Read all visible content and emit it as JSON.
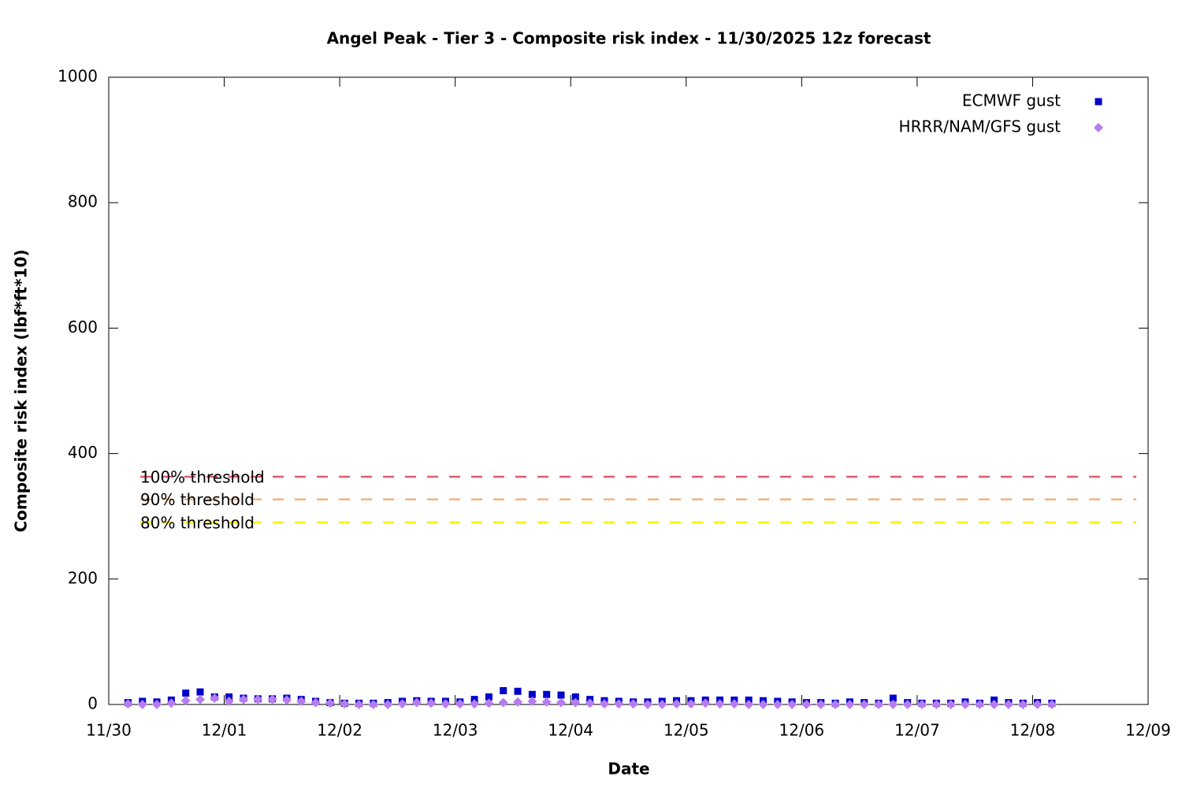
{
  "chart_data": {
    "type": "scatter",
    "title": "Angel Peak - Tier 3 - Composite risk index - 11/30/2025 12z forecast",
    "x_label": "Date",
    "y_label": "Composite risk index (lbf*ft*10)",
    "xlim": [
      0,
      216
    ],
    "xticks": [
      {
        "value": 0,
        "label": "11/30"
      },
      {
        "value": 24,
        "label": "12/01"
      },
      {
        "value": 48,
        "label": "12/02"
      },
      {
        "value": 72,
        "label": "12/03"
      },
      {
        "value": 96,
        "label": "12/04"
      },
      {
        "value": 120,
        "label": "12/05"
      },
      {
        "value": 144,
        "label": "12/06"
      },
      {
        "value": 168,
        "label": "12/07"
      },
      {
        "value": 192,
        "label": "12/08"
      },
      {
        "value": 216,
        "label": "12/09"
      }
    ],
    "ylim": [
      0,
      1000
    ],
    "yticks": [
      0,
      200,
      400,
      600,
      800,
      1000
    ],
    "legend": "top-right",
    "series": [
      {
        "name": "ECMWF gust",
        "color": "#0000cc",
        "marker": "square",
        "x": [
          4,
          7,
          10,
          13,
          16,
          19,
          22,
          25,
          28,
          31,
          34,
          37,
          40,
          43,
          46,
          49,
          52,
          55,
          58,
          61,
          64,
          67,
          70,
          73,
          76,
          79,
          82,
          85,
          88,
          91,
          94,
          97,
          100,
          103,
          106,
          109,
          112,
          115,
          118,
          121,
          124,
          127,
          130,
          133,
          136,
          139,
          142,
          145,
          148,
          151,
          154,
          157,
          160,
          163,
          166,
          169,
          172,
          175,
          178,
          181,
          184,
          187,
          190,
          193,
          196
        ],
        "values": [
          3,
          5,
          4,
          7,
          18,
          20,
          12,
          12,
          10,
          9,
          9,
          10,
          8,
          5,
          3,
          2,
          2,
          2,
          3,
          5,
          6,
          5,
          5,
          4,
          8,
          12,
          22,
          21,
          16,
          16,
          15,
          12,
          8,
          6,
          5,
          4,
          4,
          5,
          6,
          6,
          7,
          7,
          7,
          7,
          6,
          5,
          4,
          3,
          3,
          2,
          4,
          3,
          2,
          10,
          3,
          2,
          2,
          2,
          4,
          2,
          7,
          3,
          2,
          3,
          2
        ]
      },
      {
        "name": "HRRR/NAM/GFS gust",
        "color": "#b77cf0",
        "marker": "diamond",
        "x": [
          4,
          7,
          10,
          13,
          16,
          19,
          22,
          25,
          28,
          31,
          34,
          37,
          40,
          43,
          46,
          49,
          52,
          55,
          58,
          61,
          64,
          67,
          70,
          73,
          76,
          79,
          82,
          85,
          88,
          91,
          94,
          97,
          100,
          103,
          106,
          109,
          112,
          115,
          118,
          121,
          124,
          127,
          130,
          133,
          136,
          139,
          142,
          145,
          148,
          151,
          154,
          157,
          160,
          163,
          166,
          169,
          172,
          175,
          178,
          181,
          184,
          187,
          190,
          193,
          196
        ],
        "values": [
          1,
          0,
          0,
          2,
          6,
          8,
          10,
          5,
          8,
          8,
          8,
          7,
          5,
          3,
          2,
          1,
          0,
          0,
          0,
          1,
          3,
          2,
          1,
          1,
          1,
          2,
          3,
          4,
          5,
          4,
          3,
          3,
          2,
          1,
          1,
          1,
          0,
          0,
          1,
          1,
          2,
          1,
          1,
          0,
          0,
          0,
          0,
          0,
          0,
          0,
          0,
          0,
          0,
          0,
          0,
          0,
          0,
          0,
          0,
          0,
          0,
          0,
          0,
          0,
          0
        ]
      }
    ],
    "reference_lines": [
      {
        "label": "100% threshold",
        "value": 363,
        "color": "#e05a6e"
      },
      {
        "label": "90% threshold",
        "value": 327,
        "color": "#f5b27e"
      },
      {
        "label": "80% threshold",
        "value": 290,
        "color": "#f2f200"
      }
    ]
  }
}
